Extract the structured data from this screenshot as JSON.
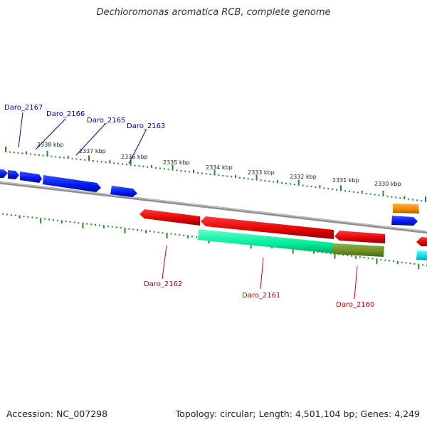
{
  "title": "Dechloromonas aromatica RCB, complete genome",
  "footer": {
    "accession": "Accession: NC_007298",
    "stats": "Topology: circular; Length: 4,501,104 bp; Genes: 4,249"
  },
  "colors": {
    "backbone": "#808080",
    "tick": "#1e8c1e",
    "label_forward": "#0000cc",
    "label_reverse": "#cc0000",
    "blue_gene": "#0018f0",
    "red_gene": "#ee0000",
    "green_gene": "#00ee99",
    "olive_gene": "#6b8e23",
    "orange_gene": "#ee8800",
    "cyan_gene": "#00ddee"
  },
  "scale": {
    "ticks": [
      {
        "label": "2338 kbp"
      },
      {
        "label": "2337 kbp"
      },
      {
        "label": "2336 kbp"
      },
      {
        "label": "2335 kbp"
      },
      {
        "label": "2334 kbp"
      },
      {
        "label": "2333 kbp"
      },
      {
        "label": "2332 kbp"
      },
      {
        "label": "2331 kbp"
      },
      {
        "label": "2330 kbp"
      }
    ]
  },
  "gene_labels": {
    "forward": [
      {
        "name": "Daro_2167"
      },
      {
        "name": "Daro_2166"
      },
      {
        "name": "Daro_2165"
      },
      {
        "name": "Daro_2163"
      }
    ],
    "reverse": [
      {
        "name": "Daro_2162"
      },
      {
        "name": "Daro_2161"
      },
      {
        "name": "Daro_2160"
      }
    ]
  }
}
